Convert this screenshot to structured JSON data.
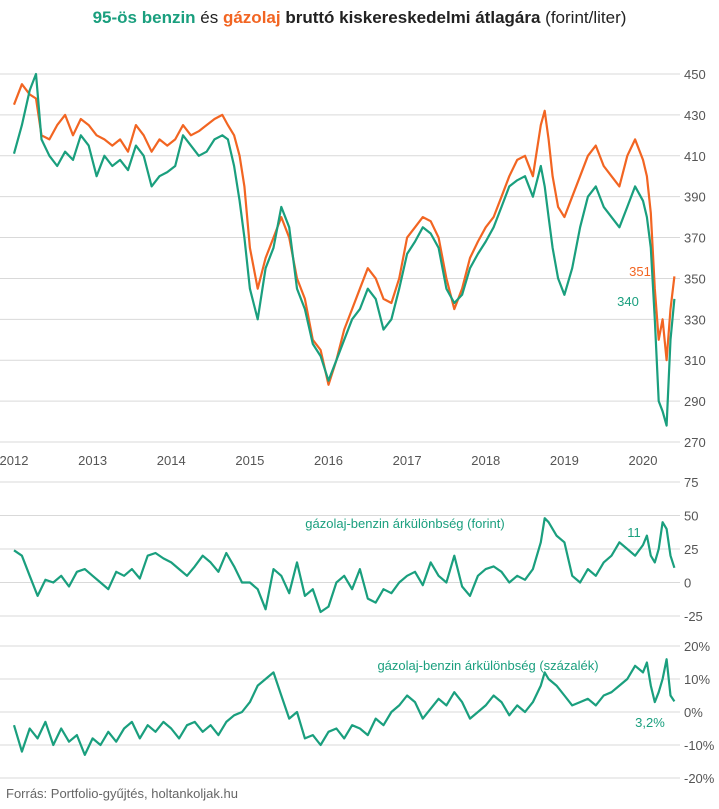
{
  "title": {
    "part1": "95-ös benzin",
    "part2": " és ",
    "part3": "gázolaj",
    "part4": " bruttó kiskereskedelmi átlagára",
    "part5": " (forint/liter)"
  },
  "source": "Forrás: Portfolio-gyűjtés, holtankoljak.hu",
  "colors": {
    "benzin": "#1a9f7e",
    "dizel": "#f26522",
    "grid": "#d9d9d9"
  },
  "chart_data": [
    {
      "type": "line",
      "x_ticks": [
        "2012",
        "2013",
        "2014",
        "2015",
        "2016",
        "2017",
        "2018",
        "2019",
        "2020"
      ],
      "xlim": [
        2012.0,
        2020.42
      ],
      "ylim": [
        270,
        450
      ],
      "y_ticks": [
        "450",
        "430",
        "410",
        "390",
        "370",
        "350",
        "330",
        "310",
        "290",
        "270"
      ],
      "grid": true,
      "series": [
        {
          "name": "95-ös benzin",
          "color": "#1a9f7e",
          "end_label": "340",
          "x": [
            2012.0,
            2012.1,
            2012.2,
            2012.28,
            2012.35,
            2012.45,
            2012.55,
            2012.65,
            2012.75,
            2012.85,
            2012.95,
            2013.05,
            2013.15,
            2013.25,
            2013.35,
            2013.45,
            2013.55,
            2013.65,
            2013.75,
            2013.85,
            2013.95,
            2014.05,
            2014.15,
            2014.25,
            2014.35,
            2014.45,
            2014.55,
            2014.65,
            2014.72,
            2014.8,
            2014.87,
            2014.93,
            2015.0,
            2015.1,
            2015.2,
            2015.3,
            2015.4,
            2015.5,
            2015.6,
            2015.7,
            2015.8,
            2015.9,
            2016.0,
            2016.1,
            2016.2,
            2016.3,
            2016.4,
            2016.5,
            2016.6,
            2016.7,
            2016.8,
            2016.9,
            2017.0,
            2017.1,
            2017.2,
            2017.3,
            2017.4,
            2017.5,
            2017.6,
            2017.7,
            2017.8,
            2017.9,
            2018.0,
            2018.1,
            2018.2,
            2018.3,
            2018.4,
            2018.5,
            2018.6,
            2018.7,
            2018.75,
            2018.8,
            2018.85,
            2018.92,
            2019.0,
            2019.1,
            2019.2,
            2019.3,
            2019.4,
            2019.5,
            2019.6,
            2019.7,
            2019.8,
            2019.9,
            2020.0,
            2020.05,
            2020.1,
            2020.15,
            2020.2,
            2020.25,
            2020.3,
            2020.35,
            2020.4
          ],
          "values": [
            411,
            425,
            442,
            450,
            418,
            410,
            405,
            412,
            408,
            420,
            415,
            400,
            410,
            405,
            408,
            403,
            415,
            410,
            395,
            400,
            402,
            405,
            420,
            415,
            410,
            412,
            418,
            420,
            418,
            405,
            388,
            370,
            345,
            330,
            355,
            365,
            385,
            375,
            345,
            335,
            318,
            312,
            300,
            310,
            320,
            330,
            335,
            345,
            340,
            325,
            330,
            345,
            362,
            368,
            375,
            372,
            365,
            345,
            338,
            342,
            355,
            362,
            368,
            375,
            385,
            395,
            398,
            400,
            390,
            405,
            395,
            380,
            365,
            350,
            342,
            355,
            375,
            390,
            395,
            385,
            380,
            375,
            385,
            395,
            388,
            380,
            365,
            330,
            290,
            285,
            278,
            320,
            340
          ]
        },
        {
          "name": "gázolaj",
          "color": "#f26522",
          "end_label": "351",
          "x": [
            2012.0,
            2012.1,
            2012.2,
            2012.28,
            2012.35,
            2012.45,
            2012.55,
            2012.65,
            2012.75,
            2012.85,
            2012.95,
            2013.05,
            2013.15,
            2013.25,
            2013.35,
            2013.45,
            2013.55,
            2013.65,
            2013.75,
            2013.85,
            2013.95,
            2014.05,
            2014.15,
            2014.25,
            2014.35,
            2014.45,
            2014.55,
            2014.65,
            2014.72,
            2014.8,
            2014.87,
            2014.93,
            2015.0,
            2015.1,
            2015.2,
            2015.3,
            2015.4,
            2015.5,
            2015.6,
            2015.7,
            2015.8,
            2015.9,
            2016.0,
            2016.1,
            2016.2,
            2016.3,
            2016.4,
            2016.5,
            2016.6,
            2016.7,
            2016.8,
            2016.9,
            2017.0,
            2017.1,
            2017.2,
            2017.3,
            2017.4,
            2017.5,
            2017.6,
            2017.7,
            2017.8,
            2017.9,
            2018.0,
            2018.1,
            2018.2,
            2018.3,
            2018.4,
            2018.5,
            2018.6,
            2018.7,
            2018.75,
            2018.8,
            2018.85,
            2018.92,
            2019.0,
            2019.1,
            2019.2,
            2019.3,
            2019.4,
            2019.5,
            2019.6,
            2019.7,
            2019.8,
            2019.9,
            2020.0,
            2020.05,
            2020.1,
            2020.15,
            2020.2,
            2020.25,
            2020.3,
            2020.35,
            2020.4
          ],
          "values": [
            435,
            445,
            440,
            438,
            420,
            418,
            425,
            430,
            420,
            428,
            425,
            420,
            418,
            415,
            418,
            412,
            425,
            420,
            412,
            418,
            415,
            418,
            425,
            420,
            422,
            425,
            428,
            430,
            425,
            420,
            410,
            395,
            365,
            345,
            360,
            370,
            380,
            370,
            350,
            340,
            320,
            315,
            298,
            310,
            325,
            335,
            345,
            355,
            350,
            340,
            338,
            350,
            370,
            375,
            380,
            378,
            370,
            350,
            335,
            345,
            360,
            368,
            375,
            380,
            390,
            400,
            408,
            410,
            400,
            425,
            432,
            418,
            400,
            385,
            380,
            390,
            400,
            410,
            415,
            405,
            400,
            395,
            410,
            418,
            408,
            400,
            382,
            345,
            320,
            330,
            310,
            335,
            351
          ]
        }
      ]
    },
    {
      "type": "line",
      "label": "gázolaj-benzin árkülönbség (forint)",
      "ylim": [
        -25,
        75
      ],
      "y_ticks": [
        "75",
        "50",
        "25",
        "0",
        "-25"
      ],
      "grid": true,
      "series": [
        {
          "color": "#1a9f7e",
          "end_label": "11",
          "x": [
            2012.0,
            2012.1,
            2012.2,
            2012.3,
            2012.4,
            2012.5,
            2012.6,
            2012.7,
            2012.8,
            2012.9,
            2013.0,
            2013.1,
            2013.2,
            2013.3,
            2013.4,
            2013.5,
            2013.6,
            2013.7,
            2013.8,
            2013.9,
            2014.0,
            2014.1,
            2014.2,
            2014.3,
            2014.4,
            2014.5,
            2014.6,
            2014.7,
            2014.8,
            2014.9,
            2015.0,
            2015.1,
            2015.2,
            2015.3,
            2015.4,
            2015.5,
            2015.6,
            2015.7,
            2015.8,
            2015.9,
            2016.0,
            2016.1,
            2016.2,
            2016.3,
            2016.4,
            2016.5,
            2016.6,
            2016.7,
            2016.8,
            2016.9,
            2017.0,
            2017.1,
            2017.2,
            2017.3,
            2017.4,
            2017.5,
            2017.6,
            2017.7,
            2017.8,
            2017.9,
            2018.0,
            2018.1,
            2018.2,
            2018.3,
            2018.4,
            2018.5,
            2018.6,
            2018.7,
            2018.75,
            2018.8,
            2018.9,
            2019.0,
            2019.1,
            2019.2,
            2019.3,
            2019.4,
            2019.5,
            2019.6,
            2019.7,
            2019.8,
            2019.9,
            2020.0,
            2020.05,
            2020.1,
            2020.15,
            2020.2,
            2020.25,
            2020.3,
            2020.35,
            2020.4
          ],
          "values": [
            24,
            20,
            5,
            -10,
            2,
            0,
            5,
            -3,
            8,
            10,
            5,
            0,
            -5,
            8,
            5,
            10,
            3,
            20,
            22,
            18,
            15,
            10,
            5,
            12,
            20,
            15,
            8,
            22,
            12,
            0,
            0,
            -5,
            -20,
            10,
            5,
            -8,
            15,
            -10,
            -5,
            -22,
            -18,
            0,
            5,
            -5,
            10,
            -12,
            -15,
            -5,
            -8,
            0,
            5,
            8,
            -2,
            15,
            5,
            0,
            20,
            -3,
            -10,
            5,
            10,
            12,
            8,
            0,
            5,
            2,
            10,
            30,
            48,
            45,
            35,
            30,
            5,
            0,
            10,
            5,
            15,
            20,
            30,
            25,
            20,
            28,
            35,
            20,
            15,
            25,
            45,
            40,
            20,
            11
          ]
        }
      ]
    },
    {
      "type": "line",
      "label": "gázolaj-benzin árkülönbség (százalék)",
      "ylim": [
        -20,
        20
      ],
      "y_ticks": [
        "20%",
        "10%",
        "0%",
        "-10%",
        "-20%"
      ],
      "grid": true,
      "series": [
        {
          "color": "#1a9f7e",
          "end_label": "3,2%",
          "x": [
            2012.0,
            2012.1,
            2012.2,
            2012.3,
            2012.4,
            2012.5,
            2012.6,
            2012.7,
            2012.8,
            2012.9,
            2013.0,
            2013.1,
            2013.2,
            2013.3,
            2013.4,
            2013.5,
            2013.6,
            2013.7,
            2013.8,
            2013.9,
            2014.0,
            2014.1,
            2014.2,
            2014.3,
            2014.4,
            2014.5,
            2014.6,
            2014.7,
            2014.8,
            2014.9,
            2015.0,
            2015.1,
            2015.2,
            2015.3,
            2015.4,
            2015.5,
            2015.6,
            2015.7,
            2015.8,
            2015.9,
            2016.0,
            2016.1,
            2016.2,
            2016.3,
            2016.4,
            2016.5,
            2016.6,
            2016.7,
            2016.8,
            2016.9,
            2017.0,
            2017.1,
            2017.2,
            2017.3,
            2017.4,
            2017.5,
            2017.6,
            2017.7,
            2017.8,
            2017.9,
            2018.0,
            2018.1,
            2018.2,
            2018.3,
            2018.4,
            2018.5,
            2018.6,
            2018.7,
            2018.75,
            2018.8,
            2018.9,
            2019.0,
            2019.1,
            2019.2,
            2019.3,
            2019.4,
            2019.5,
            2019.6,
            2019.7,
            2019.8,
            2019.9,
            2020.0,
            2020.05,
            2020.1,
            2020.15,
            2020.2,
            2020.25,
            2020.3,
            2020.35,
            2020.4
          ],
          "values": [
            -4,
            -12,
            -5,
            -8,
            -3,
            -10,
            -5,
            -9,
            -7,
            -13,
            -8,
            -10,
            -6,
            -9,
            -5,
            -3,
            -8,
            -4,
            -6,
            -3,
            -5,
            -8,
            -4,
            -3,
            -6,
            -4,
            -7,
            -3,
            -1,
            0,
            3,
            8,
            10,
            12,
            5,
            -2,
            0,
            -8,
            -7,
            -10,
            -6,
            -5,
            -8,
            -4,
            -5,
            -7,
            -2,
            -4,
            0,
            2,
            5,
            3,
            -2,
            1,
            4,
            2,
            6,
            3,
            -2,
            0,
            2,
            5,
            3,
            -1,
            2,
            0,
            3,
            8,
            12,
            10,
            8,
            5,
            2,
            3,
            4,
            2,
            5,
            6,
            8,
            10,
            14,
            12,
            15,
            8,
            3,
            6,
            10,
            16,
            5,
            3.2
          ]
        }
      ]
    }
  ]
}
